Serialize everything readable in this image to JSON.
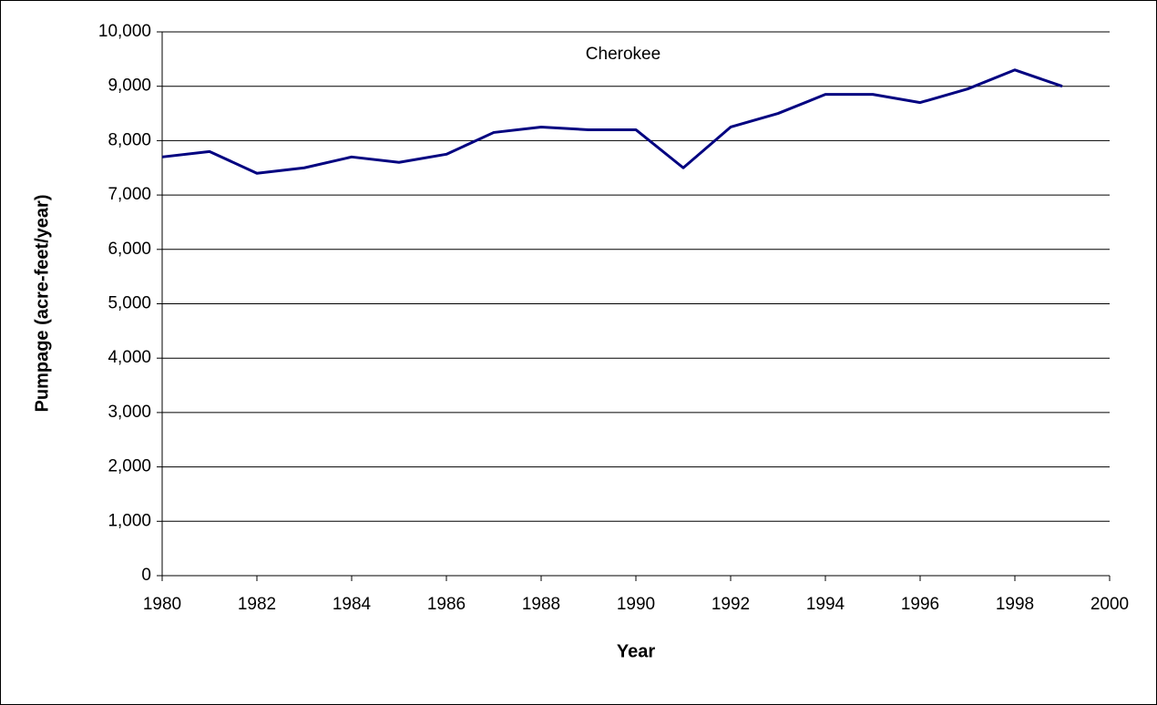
{
  "chart_data": {
    "type": "line",
    "annotation": "Cherokee",
    "x_label": "Year",
    "y_label": "Pumpage (acre-feet/year)",
    "x": [
      1980,
      1981,
      1982,
      1983,
      1984,
      1985,
      1986,
      1987,
      1988,
      1989,
      1990,
      1991,
      1992,
      1993,
      1994,
      1995,
      1996,
      1997,
      1998,
      1999
    ],
    "series": [
      {
        "color": "#000080",
        "values": [
          7700,
          7800,
          7400,
          7500,
          7700,
          7600,
          7750,
          8150,
          8250,
          8200,
          8200,
          7500,
          8250,
          8500,
          8850,
          8850,
          8700,
          8950,
          9300,
          9000
        ]
      }
    ],
    "xlim": [
      1980,
      2000
    ],
    "xticks": [
      1980,
      1982,
      1984,
      1986,
      1988,
      1990,
      1992,
      1994,
      1996,
      1998,
      2000
    ],
    "ylim": [
      0,
      10000
    ],
    "yticks": [
      0,
      {
        "value": 1000,
        "label": "1,000"
      },
      {
        "value": 2000,
        "label": "2,000"
      },
      {
        "value": 3000,
        "label": "3,000"
      },
      {
        "value": 4000,
        "label": "4,000"
      },
      {
        "value": 5000,
        "label": "5,000"
      },
      {
        "value": 6000,
        "label": "6,000"
      },
      {
        "value": 7000,
        "label": "7,000"
      },
      {
        "value": 8000,
        "label": "8,000"
      },
      {
        "value": 9000,
        "label": "9,000"
      },
      {
        "value": 10000,
        "label": "10,000"
      }
    ],
    "grid": true
  }
}
